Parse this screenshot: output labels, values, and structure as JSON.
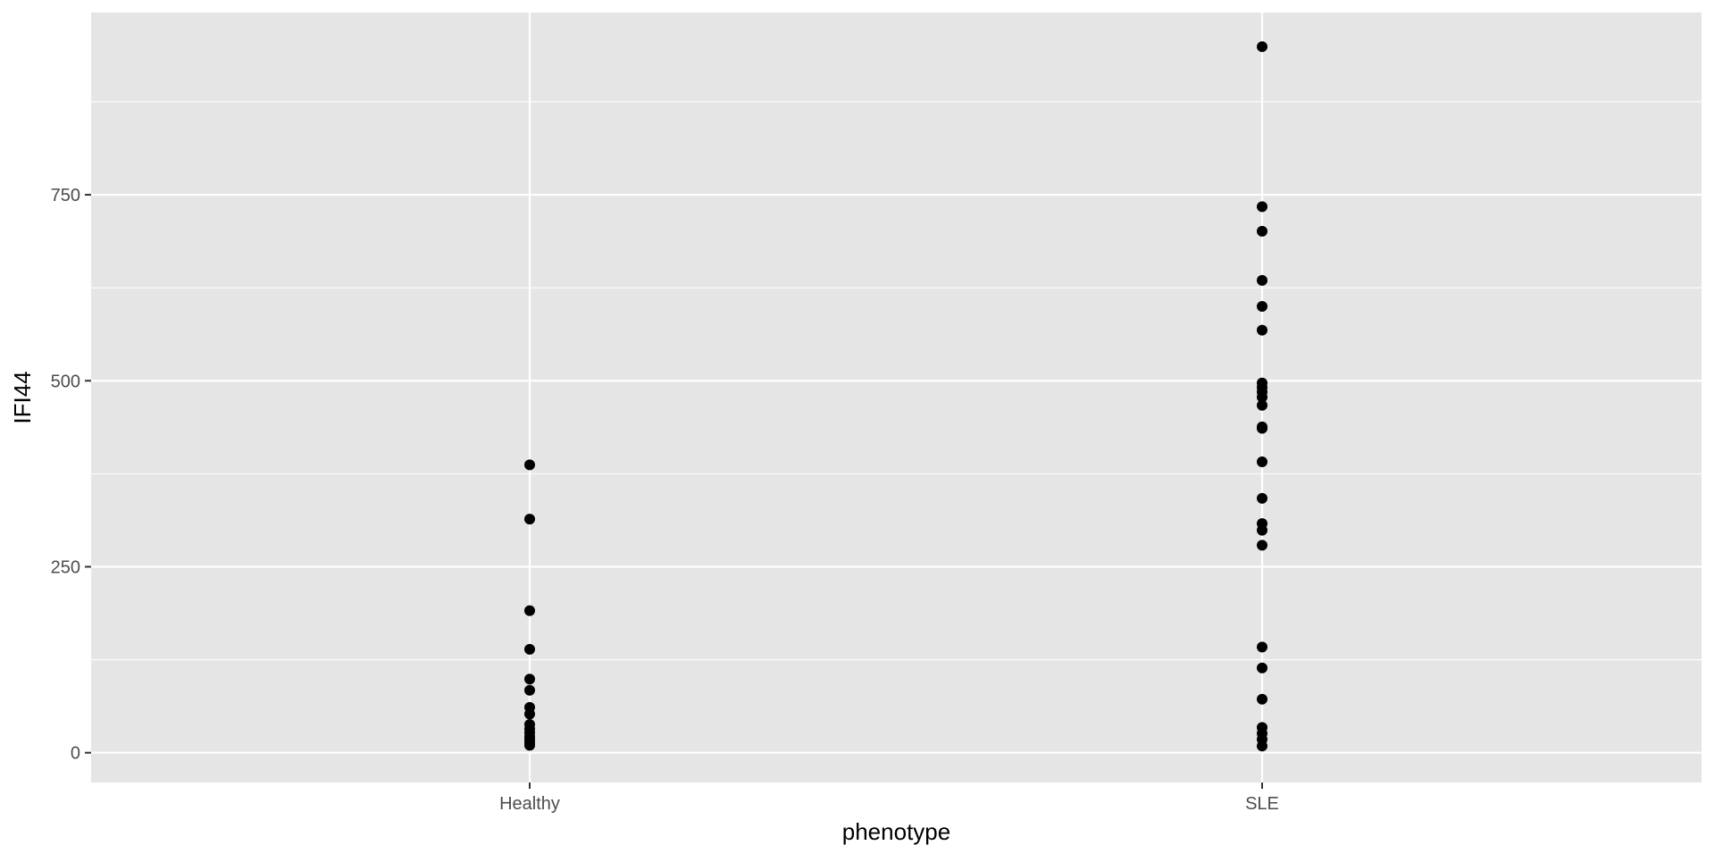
{
  "chart_data": {
    "type": "scatter",
    "title": "",
    "xlabel": "phenotype",
    "ylabel": "IFI44",
    "categories": [
      "Healthy",
      "SLE"
    ],
    "ylim": [
      -40,
      995
    ],
    "yticks": [
      0,
      250,
      500,
      750
    ],
    "yticks_minor": [
      125,
      375,
      625,
      875
    ],
    "grid": true,
    "legend": "none",
    "colors": {
      "panel": "#e5e5e5",
      "grid": "#ffffff",
      "point": "#000000",
      "tick": "#4d4d4d"
    },
    "series": [
      {
        "category": "Healthy",
        "values": [
          387,
          314,
          191,
          139,
          99,
          84,
          61,
          52,
          38,
          32,
          27,
          22,
          18,
          14,
          10
        ]
      },
      {
        "category": "SLE",
        "values": [
          949,
          734,
          701,
          635,
          600,
          568,
          497,
          491,
          485,
          478,
          467,
          438,
          436,
          391,
          342,
          308,
          299,
          279,
          142,
          114,
          72,
          34,
          26,
          18,
          9
        ]
      }
    ]
  }
}
